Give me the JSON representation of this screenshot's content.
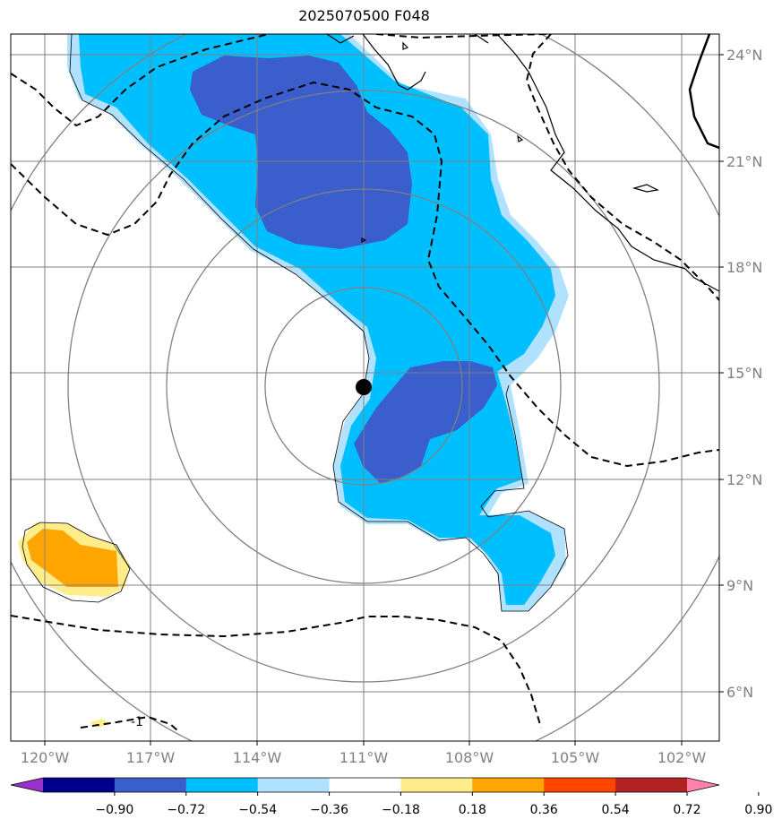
{
  "title": "2025070500 F048",
  "lon_labels": [
    "120°W",
    "117°W",
    "114°W",
    "111°W",
    "108°W",
    "105°W",
    "102°W"
  ],
  "lat_labels": [
    "24°N",
    "21°N",
    "18°N",
    "15°N",
    "12°N",
    "9°N",
    "6°N"
  ],
  "contour_label": "-1",
  "colorbar": {
    "colors": [
      "#9932cc",
      "#00008b",
      "#3a5fcd",
      "#00bfff",
      "#b0e2ff",
      "#ffffff",
      "#ffec8b",
      "#ffa500",
      "#ff4500",
      "#b22222",
      "#ff82ab"
    ],
    "tick_labels": [
      "−0.90",
      "−0.72",
      "−0.54",
      "−0.36",
      "−0.18",
      "0.18",
      "0.36",
      "0.54",
      "0.72",
      "0.90"
    ]
  },
  "storm_center_icon": "storm-center-dot-icon"
}
